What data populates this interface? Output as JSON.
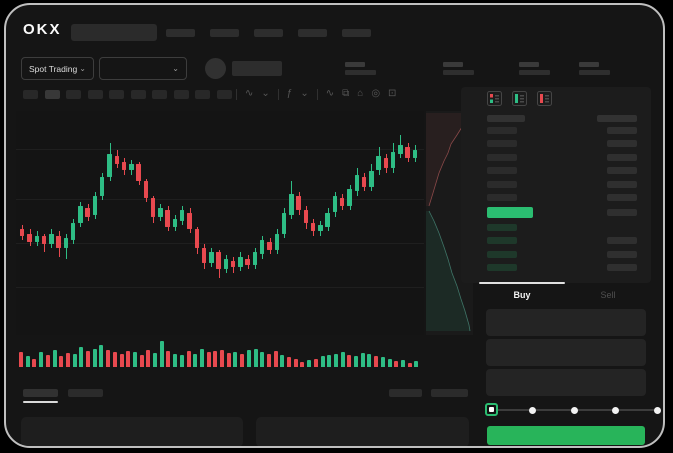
{
  "window": {
    "app": "OKX spot trading terminal",
    "frame_border_color": "#bfbfbf",
    "background": "#151515"
  },
  "colors": {
    "candle_up": "#2ebd85",
    "candle_down": "#e8494f",
    "mid_price_highlight": "#2bbd71",
    "buy_button": "#28b45a",
    "slider_active_border": "#2bbd71",
    "tab_indicator": "#e0e0e0"
  },
  "header": {
    "logo": "OKX",
    "search_placeholder": "",
    "nav_placeholder_count": 5
  },
  "instrument_bar": {
    "market_selector": {
      "label": "Spot Trading",
      "chevron": "⌄"
    },
    "pair_selector": {
      "label": "",
      "chevron": "⌄"
    },
    "stat_group_count": 4,
    "stat_group_lefts": [
      339,
      437,
      513,
      573
    ]
  },
  "chart_toolbar": {
    "timeframe_placeholder_count": 10,
    "active_timeframe_index": 1,
    "icons": [
      "sep",
      "wave-icon",
      "chevron-down-icon",
      "sep",
      "indicator-icon",
      "chevron-down-icon",
      "sep",
      "line-tool-icon",
      "layers-icon",
      "camera-icon",
      "target-icon",
      "fullscreen-icon"
    ],
    "icon_glyphs": {
      "wave-icon": "∿",
      "chevron-down-icon": "⌄",
      "indicator-icon": "ƒ",
      "line-tool-icon": "∿",
      "layers-icon": "⧉",
      "camera-icon": "⌂",
      "target-icon": "◎",
      "fullscreen-icon": "⊡"
    }
  },
  "order_book": {
    "layout_icons": [
      "book-combined-icon",
      "book-bids-icon",
      "book-asks-icon"
    ],
    "has_header_row": true,
    "ask_rows": 6,
    "bid_rows": 4,
    "bid_rows_with_amount": [
      1,
      2,
      3
    ],
    "mid_price_highlighted": true
  },
  "trade_panel": {
    "tabs": [
      {
        "label": "Buy",
        "active": true
      },
      {
        "label": "Sell",
        "active": false
      }
    ],
    "input_placeholder_count": 3,
    "slider": {
      "stops": 5,
      "active_stop": 0
    },
    "buy_button_label": ""
  },
  "bottom_panel": {
    "tab_placeholder_count": 2,
    "active_tab_index": 0,
    "right_placeholder_count": 2,
    "content_panel_count": 2
  },
  "chart_data": [
    {
      "type": "candlestick",
      "title": "",
      "xlabel": "",
      "ylabel": "",
      "axes_labels_visible": false,
      "grid": "faint horizontal lines",
      "scale_note": "no numeric axes shown; values normalized 0-100 of pane height",
      "up_color": "#2ebd85",
      "down_color": "#e8494f",
      "candles_ohlc": [
        [
          47,
          49,
          42,
          44
        ],
        [
          45,
          47,
          39,
          41
        ],
        [
          41,
          46,
          39,
          44
        ],
        [
          44,
          45,
          36,
          40
        ],
        [
          40,
          47,
          38,
          45
        ],
        [
          44,
          46,
          34,
          38
        ],
        [
          38,
          45,
          33,
          43
        ],
        [
          42,
          52,
          40,
          50
        ],
        [
          50,
          60,
          48,
          58
        ],
        [
          57,
          59,
          51,
          53
        ],
        [
          54,
          65,
          52,
          63
        ],
        [
          63,
          74,
          61,
          72
        ],
        [
          72,
          88,
          70,
          83
        ],
        [
          82,
          85,
          76,
          78
        ],
        [
          79,
          81,
          73,
          75
        ],
        [
          75,
          80,
          73,
          78
        ],
        [
          78,
          79,
          68,
          70
        ],
        [
          70,
          71,
          60,
          62
        ],
        [
          62,
          63,
          50,
          53
        ],
        [
          53,
          59,
          51,
          57
        ],
        [
          56,
          58,
          46,
          48
        ],
        [
          48,
          54,
          46,
          52
        ],
        [
          51,
          58,
          49,
          56
        ],
        [
          55,
          57,
          45,
          47
        ],
        [
          47,
          48,
          35,
          38
        ],
        [
          38,
          40,
          28,
          31
        ],
        [
          31,
          38,
          29,
          36
        ],
        [
          36,
          37,
          24,
          28
        ],
        [
          28,
          35,
          26,
          33
        ],
        [
          32,
          34,
          26,
          29
        ],
        [
          29,
          36,
          27,
          34
        ],
        [
          33,
          35,
          28,
          30
        ],
        [
          30,
          38,
          28,
          36
        ],
        [
          35,
          44,
          33,
          42
        ],
        [
          41,
          43,
          35,
          37
        ],
        [
          37,
          47,
          35,
          45
        ],
        [
          45,
          57,
          43,
          55
        ],
        [
          54,
          70,
          52,
          64
        ],
        [
          63,
          65,
          54,
          56
        ],
        [
          56,
          58,
          47,
          50
        ],
        [
          50,
          52,
          44,
          46
        ],
        [
          46,
          51,
          44,
          49
        ],
        [
          48,
          57,
          46,
          55
        ],
        [
          55,
          65,
          53,
          63
        ],
        [
          62,
          64,
          56,
          58
        ],
        [
          58,
          68,
          56,
          66
        ],
        [
          65,
          76,
          63,
          73
        ],
        [
          72,
          74,
          65,
          67
        ],
        [
          67,
          78,
          65,
          75
        ],
        [
          75,
          86,
          73,
          82
        ],
        [
          81,
          83,
          74,
          76
        ],
        [
          76,
          88,
          74,
          84
        ],
        [
          83,
          92,
          81,
          87
        ],
        [
          86,
          88,
          79,
          81
        ],
        [
          81,
          87,
          79,
          85
        ]
      ]
    },
    {
      "type": "bar",
      "subtype": "volume",
      "scale_note": "normalized 0-100 of volume pane height",
      "values": [
        [
          55,
          "r"
        ],
        [
          40,
          "g"
        ],
        [
          30,
          "r"
        ],
        [
          52,
          "g"
        ],
        [
          44,
          "r"
        ],
        [
          60,
          "g"
        ],
        [
          38,
          "r"
        ],
        [
          50,
          "r"
        ],
        [
          46,
          "g"
        ],
        [
          72,
          "g"
        ],
        [
          58,
          "r"
        ],
        [
          66,
          "g"
        ],
        [
          80,
          "g"
        ],
        [
          62,
          "r"
        ],
        [
          55,
          "r"
        ],
        [
          48,
          "r"
        ],
        [
          58,
          "r"
        ],
        [
          52,
          "g"
        ],
        [
          44,
          "r"
        ],
        [
          60,
          "r"
        ],
        [
          50,
          "g"
        ],
        [
          92,
          "g"
        ],
        [
          56,
          "r"
        ],
        [
          48,
          "g"
        ],
        [
          42,
          "g"
        ],
        [
          58,
          "r"
        ],
        [
          46,
          "g"
        ],
        [
          64,
          "g"
        ],
        [
          52,
          "r"
        ],
        [
          58,
          "r"
        ],
        [
          62,
          "r"
        ],
        [
          50,
          "r"
        ],
        [
          55,
          "g"
        ],
        [
          46,
          "r"
        ],
        [
          60,
          "g"
        ],
        [
          64,
          "g"
        ],
        [
          52,
          "g"
        ],
        [
          48,
          "r"
        ],
        [
          56,
          "r"
        ],
        [
          42,
          "g"
        ],
        [
          36,
          "r"
        ],
        [
          28,
          "r"
        ],
        [
          18,
          "r"
        ],
        [
          24,
          "g"
        ],
        [
          30,
          "r"
        ],
        [
          38,
          "g"
        ],
        [
          42,
          "g"
        ],
        [
          48,
          "g"
        ],
        [
          55,
          "g"
        ],
        [
          44,
          "r"
        ],
        [
          38,
          "g"
        ],
        [
          50,
          "g"
        ],
        [
          46,
          "g"
        ],
        [
          40,
          "r"
        ],
        [
          34,
          "g"
        ],
        [
          28,
          "g"
        ],
        [
          20,
          "r"
        ],
        [
          26,
          "g"
        ],
        [
          16,
          "r"
        ],
        [
          22,
          "g"
        ]
      ]
    },
    {
      "type": "area",
      "subtype": "depth",
      "orientation": "vertical sliver beside order book",
      "asks_curve": [
        [
          3,
          95
        ],
        [
          7,
          82
        ],
        [
          10,
          72
        ],
        [
          13,
          62
        ],
        [
          18,
          50
        ],
        [
          22,
          42
        ],
        [
          25,
          33
        ],
        [
          31,
          24
        ],
        [
          36,
          16
        ],
        [
          41,
          9
        ],
        [
          44,
          2
        ]
      ],
      "bids_curve": [
        [
          3,
          100
        ],
        [
          8,
          110
        ],
        [
          13,
          122
        ],
        [
          18,
          136
        ],
        [
          22,
          148
        ],
        [
          26,
          162
        ],
        [
          31,
          175
        ],
        [
          35,
          188
        ],
        [
          39,
          200
        ],
        [
          43,
          214
        ],
        [
          44,
          220
        ]
      ],
      "asks_color": "#e06060",
      "bids_color": "#2ebd85"
    }
  ]
}
